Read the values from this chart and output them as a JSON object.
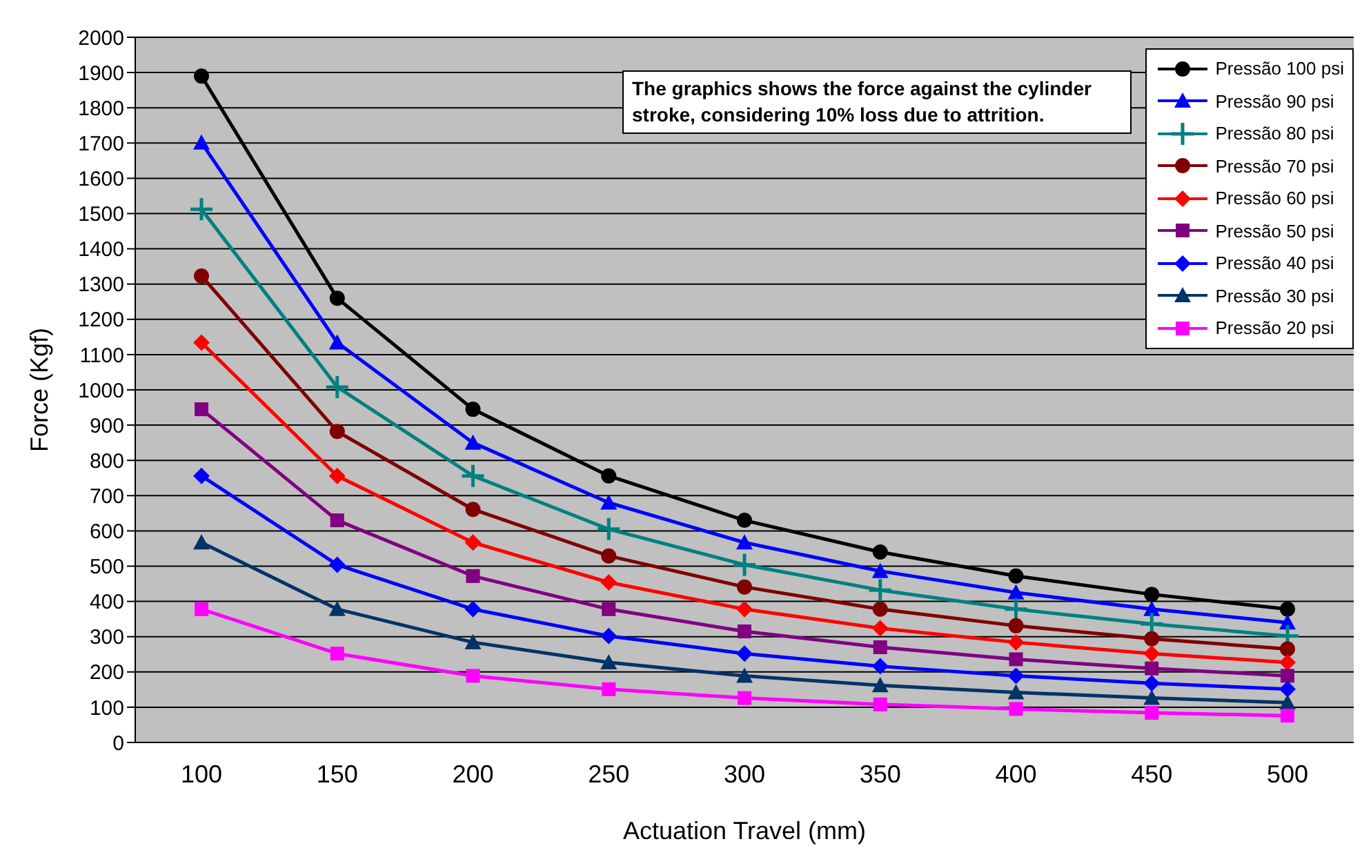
{
  "chart_data": {
    "type": "line",
    "xlabel": "Actuation Travel (mm)",
    "ylabel": "Force (Kgf)",
    "categories": [
      "100",
      "150",
      "200",
      "250",
      "300",
      "350",
      "400",
      "450",
      "500"
    ],
    "ylim": [
      0,
      2000
    ],
    "yticks": [
      0,
      100,
      200,
      300,
      400,
      500,
      600,
      700,
      800,
      900,
      1000,
      1100,
      1200,
      1300,
      1400,
      1500,
      1600,
      1700,
      1800,
      1900,
      2000
    ],
    "grid": "y",
    "legend": "top right",
    "annotations": [
      "The graphics shows the force against the cylinder stroke, considering 10% loss due to attrition."
    ],
    "series": [
      {
        "name": "Pressão 100 psi",
        "color": "#000000",
        "marker": "circle",
        "values": [
          1890,
          1260,
          945,
          756,
          630,
          540,
          472,
          420,
          378
        ]
      },
      {
        "name": "Pressão 90 psi",
        "color": "#0000ff",
        "marker": "triangle",
        "values": [
          1701,
          1134,
          850,
          680,
          567,
          486,
          425,
          378,
          340
        ]
      },
      {
        "name": "Pressão 80 psi",
        "color": "#008080",
        "marker": "cross",
        "values": [
          1512,
          1008,
          756,
          605,
          504,
          432,
          378,
          336,
          302
        ]
      },
      {
        "name": "Pressão 70 psi",
        "color": "#800000",
        "marker": "circle",
        "values": [
          1323,
          882,
          661,
          529,
          441,
          378,
          331,
          294,
          265
        ]
      },
      {
        "name": "Pressão 60 psi",
        "color": "#ff0000",
        "marker": "diamond",
        "values": [
          1134,
          756,
          567,
          454,
          378,
          324,
          284,
          252,
          227
        ]
      },
      {
        "name": "Pressão 50 psi",
        "color": "#800080",
        "marker": "square",
        "values": [
          945,
          630,
          472,
          378,
          315,
          270,
          236,
          210,
          189
        ]
      },
      {
        "name": "Pressão 40 psi",
        "color": "#0000ff",
        "marker": "diamond",
        "values": [
          756,
          504,
          378,
          302,
          252,
          216,
          189,
          168,
          151
        ]
      },
      {
        "name": "Pressão 30 psi",
        "color": "#003366",
        "marker": "triangle",
        "values": [
          567,
          378,
          284,
          227,
          189,
          162,
          142,
          126,
          113
        ]
      },
      {
        "name": "Pressão 20 psi",
        "color": "#ff00ff",
        "marker": "square",
        "values": [
          378,
          252,
          189,
          151,
          126,
          108,
          95,
          84,
          76
        ]
      }
    ]
  }
}
